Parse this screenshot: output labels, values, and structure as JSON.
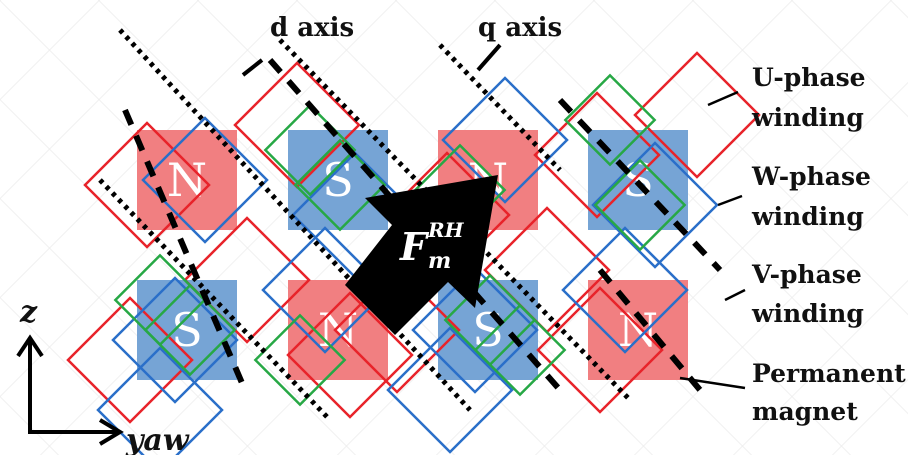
{
  "axis_labels": {
    "d": "d axis",
    "q": "q axis"
  },
  "legend": {
    "u_phase": [
      "U-phase",
      "winding"
    ],
    "w_phase": [
      "W-phase",
      "winding"
    ],
    "v_phase": [
      "V-phase",
      "winding"
    ],
    "magnet": [
      "Permanent",
      "magnet"
    ]
  },
  "coordinate_axes": {
    "vertical": "z",
    "horizontal": "yaw"
  },
  "force_label": {
    "base": "F",
    "sub": "m",
    "sup": "RH"
  },
  "magnets": [
    {
      "row": 0,
      "col": 0,
      "pole": "N"
    },
    {
      "row": 0,
      "col": 1,
      "pole": "S"
    },
    {
      "row": 0,
      "col": 2,
      "pole": "N"
    },
    {
      "row": 0,
      "col": 3,
      "pole": "S"
    },
    {
      "row": 1,
      "col": 0,
      "pole": "S"
    },
    {
      "row": 1,
      "col": 1,
      "pole": "N"
    },
    {
      "row": 1,
      "col": 2,
      "pole": "S"
    },
    {
      "row": 1,
      "col": 3,
      "pole": "N"
    }
  ],
  "colors": {
    "north_fill": "#f0787a",
    "south_fill": "#6f9fd3",
    "u_winding": "#e8232a",
    "v_winding": "#2a6fc9",
    "w_winding": "#27a845",
    "text": "#111111"
  }
}
